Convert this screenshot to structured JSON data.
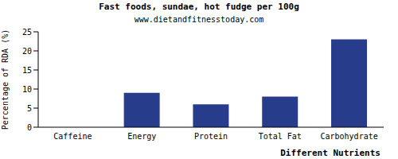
{
  "chart_data": {
    "type": "bar",
    "title": "Fast foods, sundae, hot fudge per 100g",
    "subtitle": "www.dietandfitnesstoday.com",
    "x_label": "Different Nutrients",
    "y_label": "Percentage of RDA (%)",
    "categories": [
      "Caffeine",
      "Energy",
      "Protein",
      "Total Fat",
      "Carbohydrate"
    ],
    "values": [
      0,
      9,
      6,
      8,
      23
    ],
    "color": "#283c8c",
    "ylim": [
      0,
      25
    ],
    "yticks": [
      0,
      5,
      10,
      15,
      20,
      25
    ],
    "grid": false
  }
}
